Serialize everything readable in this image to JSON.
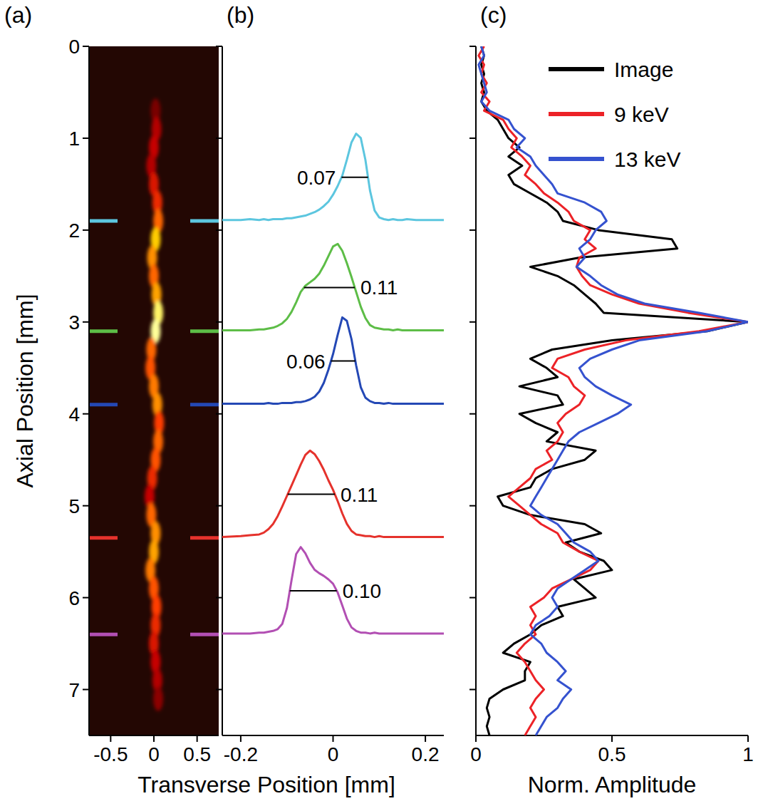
{
  "chart_data": [
    {
      "type": "heatmap",
      "title": "(a)",
      "xlabel": "Transverse Position [mm]",
      "ylabel": "Axial Position [mm]",
      "xlim": [
        -0.75,
        0.75
      ],
      "xticks": [
        -0.5,
        0,
        0.5
      ],
      "ylim": [
        7.5,
        0
      ],
      "yticks": [
        0,
        1,
        2,
        3,
        4,
        5,
        6,
        7
      ],
      "filament": {
        "axial": [
          0.7,
          0.9,
          1.1,
          1.3,
          1.5,
          1.7,
          1.9,
          2.1,
          2.3,
          2.5,
          2.7,
          2.9,
          3.1,
          3.3,
          3.5,
          3.7,
          3.9,
          4.1,
          4.3,
          4.5,
          4.7,
          4.9,
          5.1,
          5.3,
          5.5,
          5.7,
          5.9,
          6.1,
          6.3,
          6.5,
          6.7,
          6.9,
          7.1
        ],
        "transverse": [
          0.02,
          0.03,
          0.0,
          -0.03,
          0.0,
          0.04,
          0.05,
          0.02,
          -0.02,
          0.0,
          0.03,
          0.05,
          0.02,
          -0.03,
          -0.04,
          0.0,
          0.04,
          0.06,
          0.05,
          0.02,
          -0.02,
          -0.05,
          -0.03,
          0.02,
          0.0,
          -0.04,
          0.0,
          0.03,
          0.02,
          0.0,
          0.02,
          0.04,
          0.05
        ],
        "intensity": [
          0.15,
          0.3,
          0.35,
          0.3,
          0.4,
          0.45,
          0.6,
          0.85,
          0.7,
          0.6,
          0.75,
          0.95,
          1.0,
          0.6,
          0.55,
          0.65,
          0.7,
          0.5,
          0.6,
          0.55,
          0.45,
          0.35,
          0.6,
          0.7,
          0.75,
          0.65,
          0.55,
          0.5,
          0.45,
          0.4,
          0.35,
          0.3,
          0.2
        ]
      }
    },
    {
      "type": "line",
      "title": "(b)",
      "tick_labels": "x",
      "xlim": [
        -0.24,
        0.24
      ],
      "xticks": [
        -0.2,
        0,
        0.2
      ],
      "ylim": [
        7.5,
        0
      ],
      "yticks": [
        0,
        1,
        2,
        3,
        4,
        5,
        6,
        7
      ],
      "x": [
        -0.24,
        -0.2,
        -0.18,
        -0.16,
        -0.15,
        -0.14,
        -0.13,
        -0.12,
        -0.11,
        -0.1,
        -0.09,
        -0.08,
        -0.07,
        -0.06,
        -0.05,
        -0.04,
        -0.03,
        -0.02,
        -0.01,
        0,
        0.01,
        0.02,
        0.03,
        0.04,
        0.05,
        0.06,
        0.07,
        0.08,
        0.09,
        0.1,
        0.11,
        0.12,
        0.13,
        0.14,
        0.15,
        0.16,
        0.18,
        0.2,
        0.24
      ],
      "series": [
        {
          "color": "#5cc6df",
          "offset": 1.9,
          "fwhm": 0.07,
          "values": [
            0.01,
            0.01,
            0.02,
            0.01,
            0.02,
            0.01,
            0.02,
            0.02,
            0.02,
            0.03,
            0.03,
            0.04,
            0.05,
            0.06,
            0.08,
            0.1,
            0.13,
            0.17,
            0.22,
            0.3,
            0.4,
            0.52,
            0.7,
            0.9,
            1.0,
            0.95,
            0.7,
            0.35,
            0.12,
            0.04,
            0.02,
            0.01,
            0.02,
            0.01,
            0.01,
            0.02,
            0.01,
            0.01,
            0.01
          ]
        },
        {
          "color": "#5dbd47",
          "offset": 3.1,
          "fwhm": 0.11,
          "values": [
            0.01,
            0.01,
            0.01,
            0.02,
            0.02,
            0.03,
            0.04,
            0.06,
            0.09,
            0.14,
            0.22,
            0.33,
            0.45,
            0.52,
            0.56,
            0.6,
            0.66,
            0.75,
            0.86,
            0.97,
            1.0,
            0.92,
            0.78,
            0.62,
            0.45,
            0.28,
            0.15,
            0.07,
            0.04,
            0.03,
            0.02,
            0.02,
            0.01,
            0.02,
            0.01,
            0.01,
            0.01,
            0.01,
            0.01
          ]
        },
        {
          "color": "#2448b5",
          "offset": 3.9,
          "fwhm": 0.06,
          "values": [
            0.01,
            0.01,
            0.01,
            0.01,
            0.01,
            0.02,
            0.01,
            0.01,
            0.02,
            0.02,
            0.02,
            0.03,
            0.03,
            0.04,
            0.06,
            0.09,
            0.15,
            0.25,
            0.4,
            0.58,
            0.8,
            1.0,
            0.96,
            0.75,
            0.45,
            0.2,
            0.08,
            0.04,
            0.02,
            0.02,
            0.01,
            0.02,
            0.01,
            0.01,
            0.01,
            0.01,
            0.01,
            0.01,
            0.01
          ]
        },
        {
          "color": "#e5322c",
          "offset": 5.35,
          "fwhm": 0.11,
          "values": [
            0.01,
            0.02,
            0.03,
            0.04,
            0.06,
            0.1,
            0.16,
            0.25,
            0.36,
            0.48,
            0.6,
            0.72,
            0.84,
            0.95,
            1.0,
            0.96,
            0.88,
            0.78,
            0.66,
            0.55,
            0.42,
            0.28,
            0.16,
            0.08,
            0.04,
            0.03,
            0.02,
            0.02,
            0.01,
            0.02,
            0.01,
            0.01,
            0.01,
            0.01,
            0.01,
            0.01,
            0.01,
            0.01,
            0.01
          ]
        },
        {
          "color": "#b24fb3",
          "offset": 6.4,
          "fwhm": {
            "value": 0.1,
            "label": "0.10"
          },
          "values": [
            0.01,
            0.01,
            0.01,
            0.02,
            0.02,
            0.03,
            0.04,
            0.06,
            0.12,
            0.3,
            0.62,
            0.92,
            1.0,
            0.93,
            0.82,
            0.74,
            0.7,
            0.67,
            0.63,
            0.58,
            0.48,
            0.33,
            0.18,
            0.08,
            0.04,
            0.02,
            0.02,
            0.01,
            0.02,
            0.01,
            0.01,
            0.01,
            0.01,
            0.01,
            0.01,
            0.01,
            0.01,
            0.01,
            0.01
          ]
        }
      ]
    },
    {
      "type": "line",
      "title": "(c)",
      "xlabel": "Norm. Amplitude",
      "tick_labels": "x",
      "legend": "upper right",
      "xlim": [
        0,
        1
      ],
      "xticks": [
        0,
        0.5,
        1
      ],
      "ylim": [
        7.5,
        0
      ],
      "yticks": [
        0,
        1,
        2,
        3,
        4,
        5,
        6,
        7
      ],
      "y": [
        0,
        0.1,
        0.2,
        0.3,
        0.4,
        0.5,
        0.6,
        0.7,
        0.8,
        0.9,
        1,
        1.1,
        1.2,
        1.3,
        1.4,
        1.5,
        1.6,
        1.7,
        1.8,
        1.9,
        2,
        2.1,
        2.2,
        2.3,
        2.4,
        2.5,
        2.6,
        2.7,
        2.8,
        2.9,
        3,
        3.1,
        3.2,
        3.3,
        3.4,
        3.5,
        3.6,
        3.7,
        3.8,
        3.9,
        4,
        4.1,
        4.2,
        4.3,
        4.4,
        4.5,
        4.6,
        4.7,
        4.8,
        4.9,
        5,
        5.1,
        5.2,
        5.3,
        5.4,
        5.5,
        5.6,
        5.7,
        5.8,
        5.9,
        6,
        6.1,
        6.2,
        6.3,
        6.4,
        6.5,
        6.6,
        6.7,
        6.8,
        6.9,
        7,
        7.1,
        7.2,
        7.3,
        7.4,
        7.5
      ],
      "series": [
        {
          "name": "Image",
          "color": "#000000",
          "values": [
            0.02,
            0.03,
            0.02,
            0.03,
            0.02,
            0.03,
            0.02,
            0.04,
            0.08,
            0.1,
            0.12,
            0.16,
            0.12,
            0.17,
            0.12,
            0.14,
            0.2,
            0.26,
            0.3,
            0.32,
            0.45,
            0.72,
            0.74,
            0.38,
            0.2,
            0.3,
            0.36,
            0.4,
            0.44,
            0.47,
            1.0,
            0.85,
            0.5,
            0.28,
            0.2,
            0.26,
            0.3,
            0.16,
            0.3,
            0.32,
            0.16,
            0.22,
            0.3,
            0.26,
            0.44,
            0.4,
            0.28,
            0.22,
            0.2,
            0.08,
            0.1,
            0.2,
            0.4,
            0.46,
            0.33,
            0.38,
            0.47,
            0.5,
            0.36,
            0.4,
            0.44,
            0.3,
            0.32,
            0.24,
            0.2,
            0.14,
            0.1,
            0.2,
            0.18,
            0.18,
            0.1,
            0.05,
            0.04,
            0.05,
            0.04,
            0.05
          ]
        },
        {
          "name": "9 keV",
          "color": "#ec2227",
          "values": [
            0.03,
            0.01,
            0.03,
            0.02,
            0.04,
            0.02,
            0.05,
            0.03,
            0.1,
            0.12,
            0.15,
            0.13,
            0.17,
            0.2,
            0.18,
            0.22,
            0.25,
            0.3,
            0.34,
            0.36,
            0.42,
            0.4,
            0.44,
            0.38,
            0.37,
            0.39,
            0.42,
            0.5,
            0.6,
            0.78,
            1.0,
            0.82,
            0.55,
            0.4,
            0.3,
            0.28,
            0.34,
            0.36,
            0.4,
            0.38,
            0.33,
            0.3,
            0.32,
            0.3,
            0.26,
            0.28,
            0.22,
            0.2,
            0.16,
            0.12,
            0.16,
            0.2,
            0.24,
            0.3,
            0.32,
            0.38,
            0.45,
            0.42,
            0.35,
            0.28,
            0.25,
            0.2,
            0.22,
            0.2,
            0.22,
            0.18,
            0.15,
            0.18,
            0.2,
            0.22,
            0.25,
            0.22,
            0.2,
            0.22,
            0.2,
            0.18
          ]
        },
        {
          "name": "13 keV",
          "color": "#3552cf",
          "values": [
            0.02,
            0.03,
            0.01,
            0.02,
            0.03,
            0.04,
            0.02,
            0.05,
            0.12,
            0.14,
            0.18,
            0.15,
            0.2,
            0.22,
            0.25,
            0.28,
            0.3,
            0.4,
            0.46,
            0.48,
            0.44,
            0.42,
            0.38,
            0.4,
            0.37,
            0.42,
            0.46,
            0.52,
            0.62,
            0.82,
            1.0,
            0.85,
            0.6,
            0.5,
            0.42,
            0.38,
            0.4,
            0.44,
            0.5,
            0.57,
            0.52,
            0.45,
            0.38,
            0.34,
            0.32,
            0.3,
            0.28,
            0.26,
            0.24,
            0.22,
            0.2,
            0.24,
            0.3,
            0.33,
            0.36,
            0.42,
            0.45,
            0.4,
            0.35,
            0.3,
            0.28,
            0.3,
            0.27,
            0.22,
            0.2,
            0.24,
            0.26,
            0.3,
            0.33,
            0.3,
            0.35,
            0.32,
            0.3,
            0.26,
            0.24,
            0.22
          ]
        }
      ]
    }
  ]
}
